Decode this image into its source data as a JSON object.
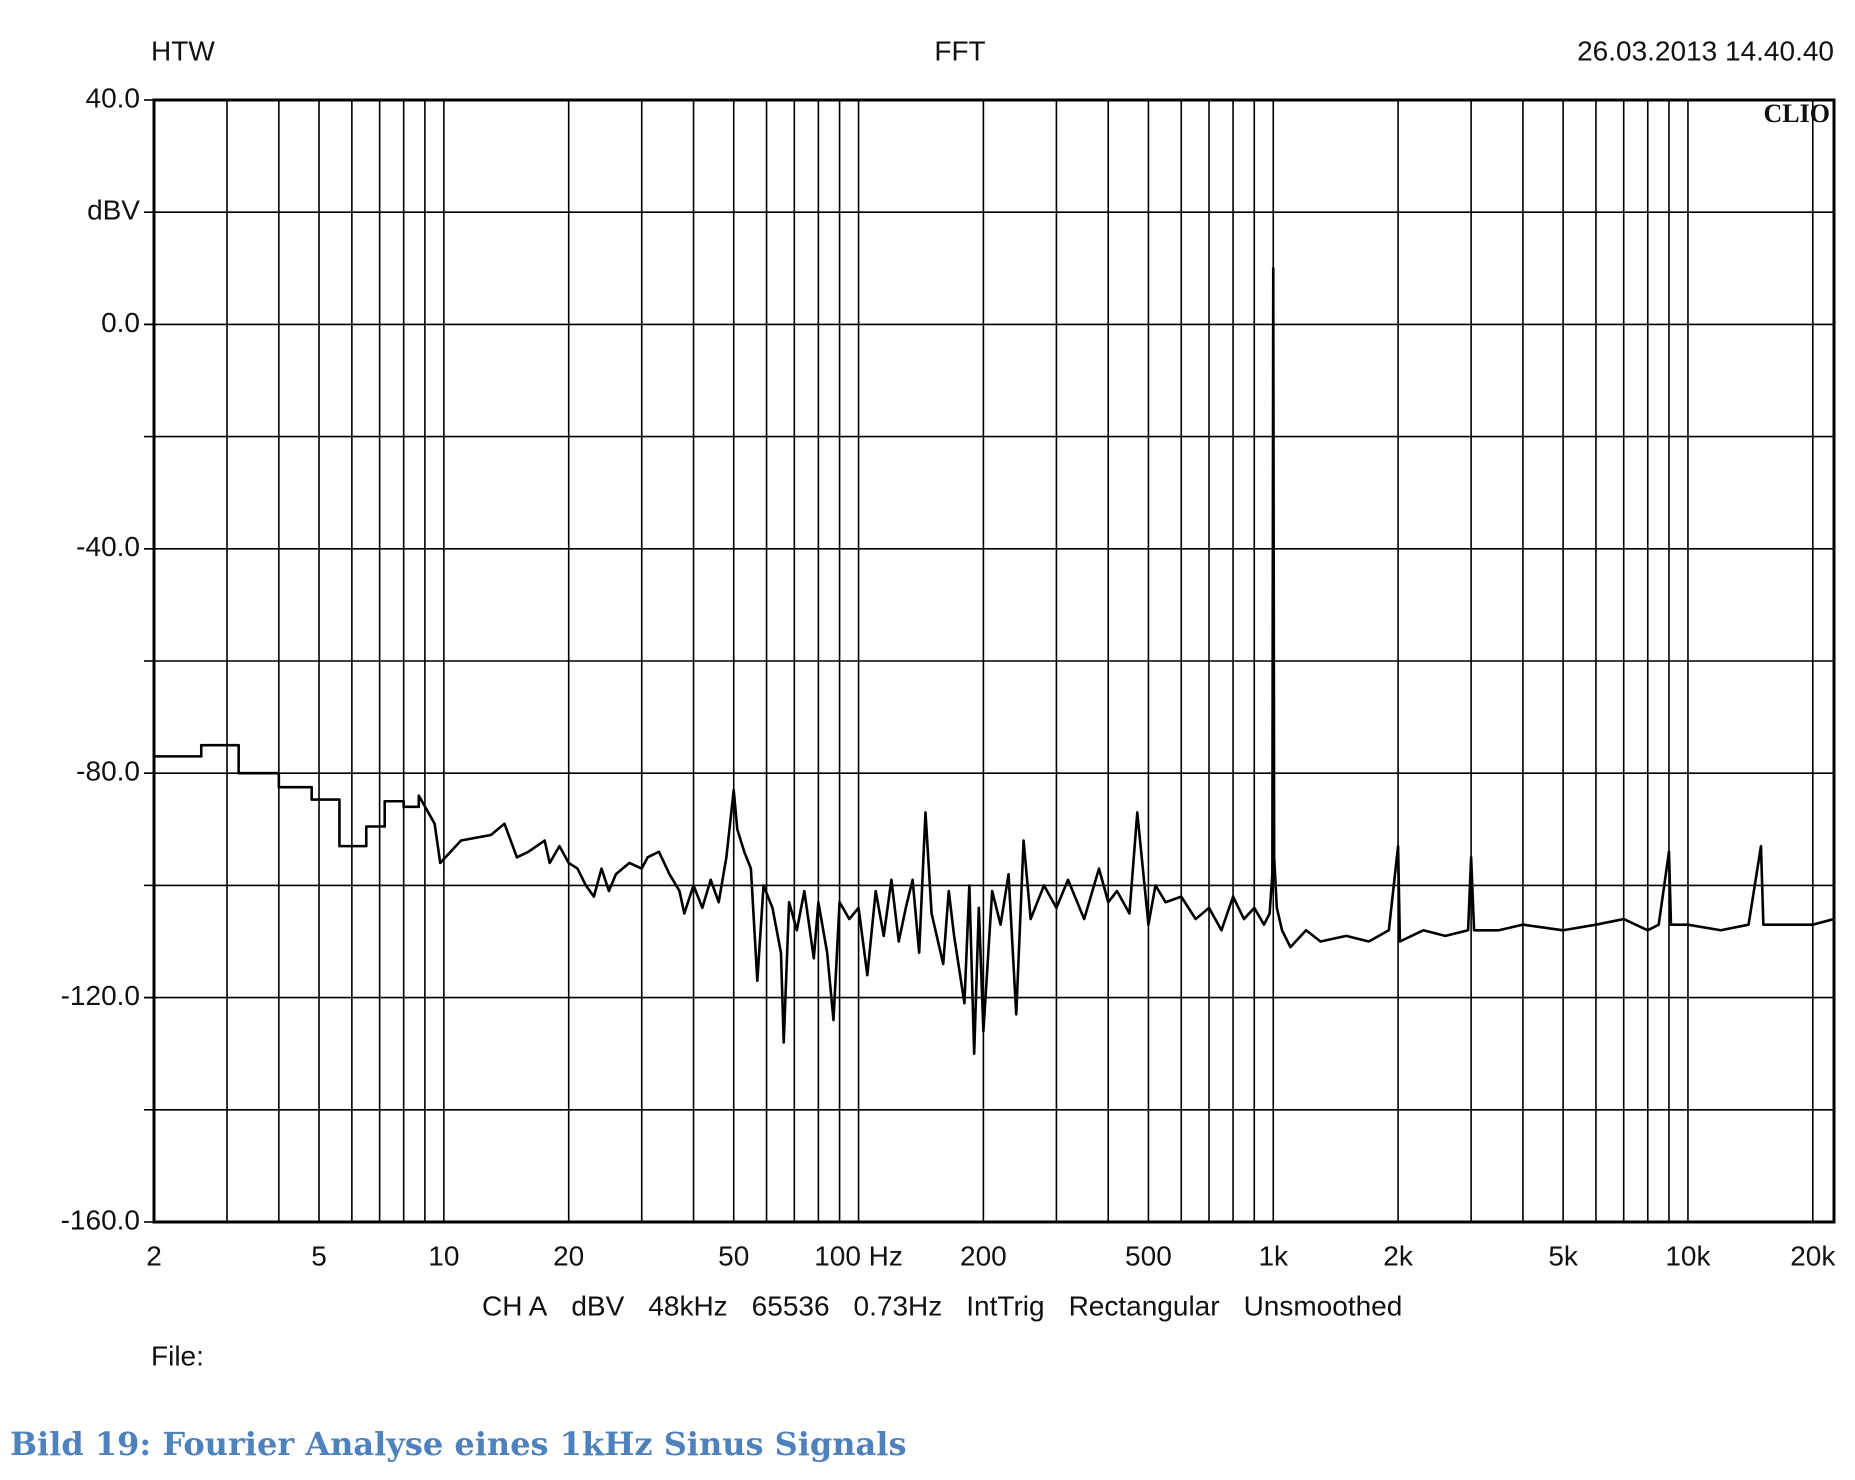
{
  "chart_data": {
    "type": "line",
    "header_left": "HTW",
    "title": "FFT",
    "timestamp": "26.03.2013 14.40.40",
    "watermark": "CLIO",
    "ylabel": "dBV",
    "settings": [
      "CH A",
      "dBV",
      "48kHz",
      "65536",
      "0.73Hz",
      "IntTrig",
      "Rectangular",
      "Unsmoothed"
    ],
    "file_label": "File:",
    "xscale": "log",
    "xlim": [
      2,
      22500
    ],
    "ylim": [
      -160,
      40
    ],
    "xticks": [
      2,
      5,
      10,
      20,
      50,
      {
        "value": 100,
        "label": "100 Hz"
      },
      200,
      500,
      {
        "value": 1000,
        "label": "1k"
      },
      {
        "value": 2000,
        "label": "2k"
      },
      {
        "value": 5000,
        "label": "5k"
      },
      {
        "value": 10000,
        "label": "10k"
      },
      {
        "value": 20000,
        "label": "20k"
      }
    ],
    "yticks": [
      {
        "value": 40,
        "label": "40.0"
      },
      {
        "value": 0,
        "label": "0.0"
      },
      {
        "value": -40,
        "label": "-40.0"
      },
      {
        "value": -80,
        "label": "-80.0"
      },
      {
        "value": -120,
        "label": "-120.0"
      },
      {
        "value": -160,
        "label": "-160.0"
      }
    ],
    "ylabel_at": 20,
    "xgrid": [
      3,
      4,
      5,
      6,
      7,
      8,
      9,
      10,
      20,
      30,
      40,
      50,
      60,
      70,
      80,
      90,
      100,
      200,
      300,
      400,
      500,
      600,
      700,
      800,
      900,
      1000,
      2000,
      3000,
      4000,
      5000,
      6000,
      7000,
      8000,
      9000,
      10000,
      20000
    ],
    "ygrid": [
      20,
      0,
      -20,
      -40,
      -60,
      -80,
      -100,
      -120,
      -140
    ],
    "grid": true,
    "series": [
      {
        "name": "CH A",
        "color": "#000000",
        "x": [
          2,
          2.6,
          2.6,
          3.2,
          3.2,
          4,
          4,
          4.8,
          4.8,
          5.6,
          5.6,
          6.5,
          6.5,
          7.2,
          7.2,
          8,
          8,
          8.7,
          8.7,
          9.5,
          9.8,
          11,
          13,
          14,
          15,
          16,
          17.5,
          18,
          19,
          20,
          21,
          22,
          23,
          24,
          25,
          26,
          28,
          30,
          31,
          33,
          35,
          37,
          38,
          40,
          42,
          44,
          46,
          48,
          50,
          51,
          53,
          55,
          57,
          59,
          62,
          65,
          66,
          68,
          71,
          74,
          78,
          80,
          84,
          87,
          90,
          95,
          100,
          105,
          110,
          115,
          120,
          125,
          130,
          135,
          140,
          145,
          150,
          160,
          165,
          170,
          180,
          185,
          190,
          195,
          200,
          210,
          220,
          230,
          240,
          250,
          260,
          280,
          300,
          320,
          350,
          380,
          400,
          420,
          450,
          470,
          500,
          520,
          550,
          600,
          650,
          700,
          750,
          800,
          850,
          900,
          950,
          980,
          995,
          1000,
          1005,
          1020,
          1050,
          1100,
          1200,
          1300,
          1500,
          1700,
          1900,
          2000,
          2020,
          2300,
          2600,
          2950,
          3000,
          3050,
          3500,
          4000,
          5000,
          6000,
          7000,
          8000,
          8500,
          9000,
          9100,
          10000,
          12000,
          14000,
          15000,
          15200,
          18000,
          20000,
          22500
        ],
        "values": [
          -77,
          -77,
          -75,
          -75,
          -80,
          -80,
          -82.5,
          -82.5,
          -84.7,
          -84.7,
          -93,
          -93,
          -89.5,
          -89.5,
          -85,
          -85,
          -86,
          -86,
          -84,
          -89,
          -96,
          -92,
          -91,
          -89,
          -95,
          -94,
          -92,
          -96,
          -93,
          -96,
          -97,
          -100,
          -102,
          -97,
          -101,
          -98,
          -96,
          -97,
          -95,
          -94,
          -98,
          -101,
          -105,
          -100,
          -104,
          -99,
          -103,
          -95,
          -83,
          -90,
          -94,
          -97,
          -117,
          -100,
          -104,
          -112,
          -128,
          -103,
          -108,
          -101,
          -113,
          -103,
          -112,
          -124,
          -103,
          -106,
          -104,
          -116,
          -101,
          -109,
          -99,
          -110,
          -104,
          -99,
          -112,
          -87,
          -105,
          -114,
          -101,
          -109,
          -121,
          -100,
          -130,
          -104,
          -126,
          -101,
          -107,
          -98,
          -123,
          -92,
          -106,
          -100,
          -104,
          -99,
          -106,
          -97,
          -103,
          -101,
          -105,
          -87,
          -107,
          -100,
          -103,
          -102,
          -106,
          -104,
          -108,
          -102,
          -106,
          -104,
          -107,
          -105,
          -98,
          10,
          -95,
          -104,
          -108,
          -111,
          -108,
          -110,
          -109,
          -110,
          -108,
          -93,
          -110,
          -108,
          -109,
          -108,
          -95,
          -108,
          -108,
          -107,
          -108,
          -107,
          -106,
          -108,
          -107,
          -94,
          -107,
          -107,
          -108,
          -107,
          -93,
          -107,
          -107,
          -107,
          -106
        ]
      }
    ]
  },
  "caption": "Bild 19: Fourier Analyse eines 1kHz Sinus Signals"
}
